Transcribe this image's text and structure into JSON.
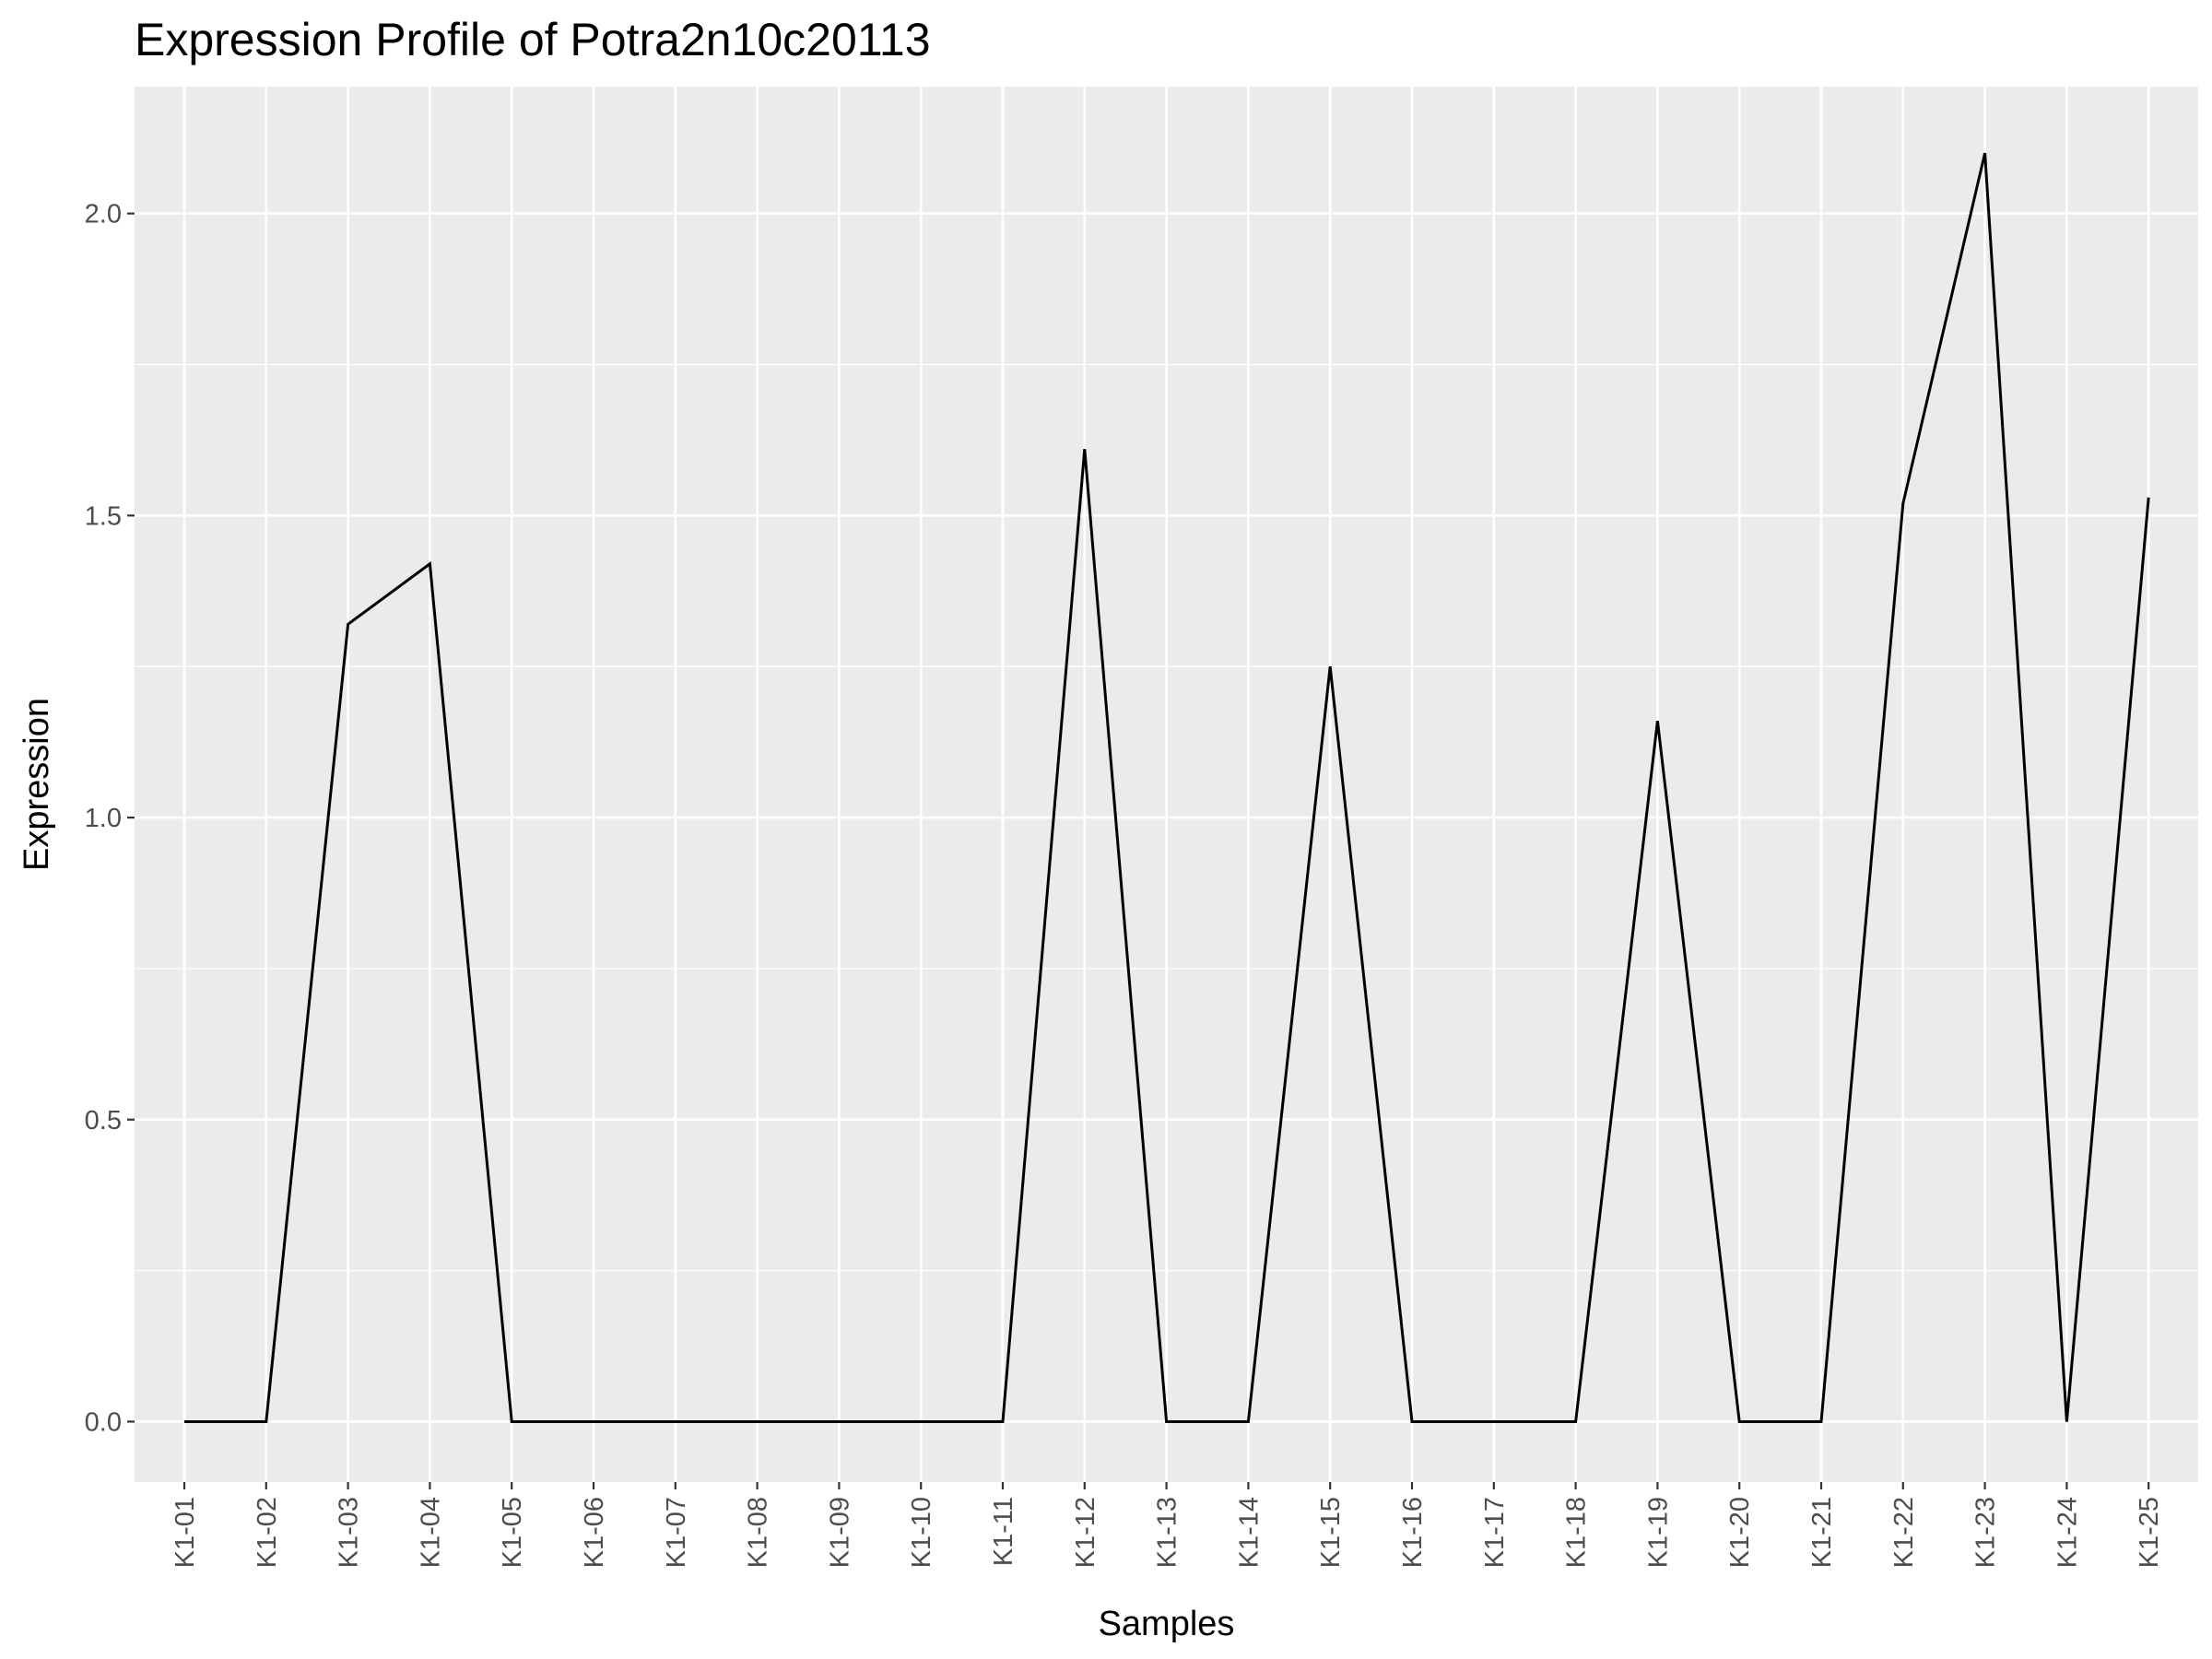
{
  "chart_data": {
    "type": "line",
    "title": "Expression Profile of Potra2n10c20113",
    "xlabel": "Samples",
    "ylabel": "Expression",
    "categories": [
      "K1-01",
      "K1-02",
      "K1-03",
      "K1-04",
      "K1-05",
      "K1-06",
      "K1-07",
      "K1-08",
      "K1-09",
      "K1-10",
      "K1-11",
      "K1-12",
      "K1-13",
      "K1-14",
      "K1-15",
      "K1-16",
      "K1-17",
      "K1-18",
      "K1-19",
      "K1-20",
      "K1-21",
      "K1-22",
      "K1-23",
      "K1-24",
      "K1-25"
    ],
    "series": [
      {
        "values": [
          0,
          0,
          1.32,
          1.42,
          0,
          0,
          0,
          0,
          0,
          0,
          0,
          1.61,
          0,
          0,
          1.25,
          0,
          0,
          0,
          1.16,
          0,
          0,
          1.52,
          2.1,
          0,
          1.53
        ]
      }
    ],
    "ylim": [
      -0.1,
      2.21
    ],
    "yticks": [
      0.0,
      0.5,
      1.0,
      1.5,
      2.0
    ],
    "ytick_labels": [
      "0.0",
      "0.5",
      "1.0",
      "1.5",
      "2.0"
    ],
    "grid": true,
    "legend": "none",
    "colors": {
      "panel": "#ebebeb",
      "grid": "#ffffff",
      "line": "#000000",
      "tick_text": "#4d4d4d"
    }
  }
}
